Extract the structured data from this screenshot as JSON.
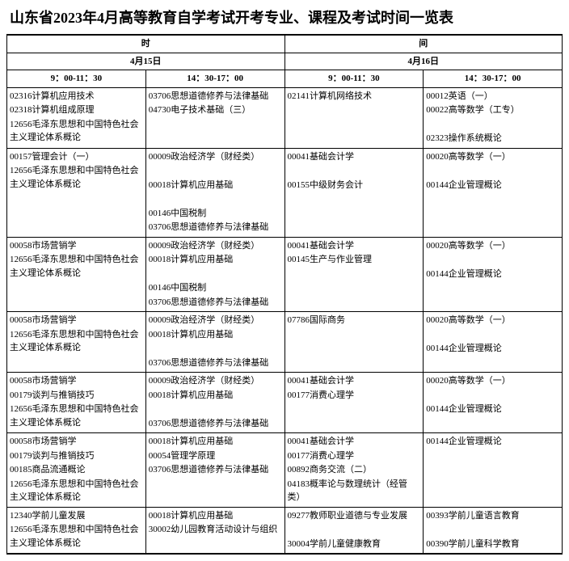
{
  "title": "山东省2023年4月高等教育自学考试开考专业、课程及考试时间一览表",
  "header": {
    "row1c1": "时",
    "row1c2": "间",
    "row2c1": "4月15日",
    "row2c2": "4月16日",
    "t1": "9：00-11：30",
    "t2": "14：30-17：00",
    "t3": "9：00-11：30",
    "t4": "14：30-17：00"
  },
  "rows": [
    {
      "c1": [
        "02316计算机应用技术",
        "02318计算机组成原理",
        "12656毛泽东思想和中国特色社会主义理论体系概论"
      ],
      "c2": [
        "03706思想道德修养与法律基础",
        "04730电子技术基础（三）"
      ],
      "c3": [
        "02141计算机网络技术"
      ],
      "c4": [
        "00012英语（一）",
        "00022高等数学（工专）",
        "",
        "02323操作系统概论"
      ]
    },
    {
      "c1": [
        "00157管理会计（一）",
        "12656毛泽东思想和中国特色社会主义理论体系概论"
      ],
      "c2": [
        "00009政治经济学（财经类）",
        "",
        "00018计算机应用基础",
        "",
        "00146中国税制",
        "03706思想道德修养与法律基础"
      ],
      "c3": [
        "00041基础会计学",
        "",
        "00155中级财务会计"
      ],
      "c4": [
        "00020高等数学（一）",
        "",
        "00144企业管理概论"
      ]
    },
    {
      "c1": [
        "00058市场营销学",
        "12656毛泽东思想和中国特色社会主义理论体系概论"
      ],
      "c2": [
        "00009政治经济学（财经类）",
        "00018计算机应用基础",
        "",
        "00146中国税制",
        "03706思想道德修养与法律基础"
      ],
      "c3": [
        "00041基础会计学",
        "00145生产与作业管理"
      ],
      "c4": [
        "00020高等数学（一）",
        "",
        "00144企业管理概论"
      ]
    },
    {
      "c1": [
        "00058市场营销学",
        "12656毛泽东思想和中国特色社会主义理论体系概论"
      ],
      "c2": [
        "00009政治经济学（财经类）",
        "00018计算机应用基础",
        "",
        "03706思想道德修养与法律基础"
      ],
      "c3": [
        "07786国际商务"
      ],
      "c4": [
        "00020高等数学（一）",
        "",
        "00144企业管理概论"
      ]
    },
    {
      "c1": [
        "00058市场营销学",
        "00179谈判与推销技巧",
        "12656毛泽东思想和中国特色社会主义理论体系概论"
      ],
      "c2": [
        "00009政治经济学（财经类）",
        "00018计算机应用基础",
        "",
        "03706思想道德修养与法律基础"
      ],
      "c3": [
        "00041基础会计学",
        "00177消费心理学"
      ],
      "c4": [
        "00020高等数学（一）",
        "",
        "00144企业管理概论"
      ]
    },
    {
      "c1": [
        "00058市场营销学",
        "00179谈判与推销技巧",
        "00185商品流通概论",
        "12656毛泽东思想和中国特色社会主义理论体系概论"
      ],
      "c2": [
        "00018计算机应用基础",
        "00054管理学原理",
        "03706思想道德修养与法律基础"
      ],
      "c3": [
        "00041基础会计学",
        "00177消费心理学",
        "00892商务交流（二）",
        "04183概率论与数理统计（经管类）"
      ],
      "c4": [
        "00144企业管理概论"
      ]
    },
    {
      "c1": [
        "12340学前儿童发展",
        "12656毛泽东思想和中国特色社会主义理论体系概论"
      ],
      "c2": [
        "00018计算机应用基础",
        "30002幼儿园教育活动设计与组织"
      ],
      "c3": [
        "09277教师职业道德与专业发展",
        "",
        "30004学前儿童健康教育"
      ],
      "c4": [
        "00393学前儿童语言教育",
        "",
        "00390学前儿童科学教育"
      ]
    }
  ]
}
